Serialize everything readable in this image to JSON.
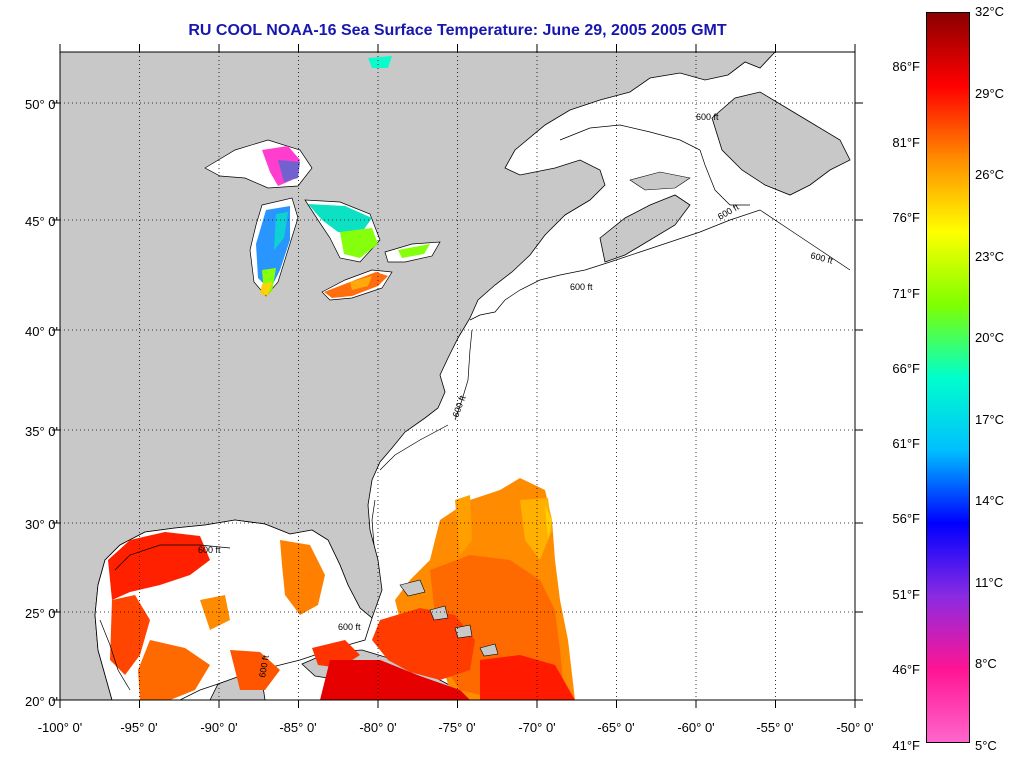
{
  "title": "RU COOL  NOAA-16  Sea Surface Temperature:  June 29, 2005 2005 GMT",
  "map": {
    "lon_range": [
      -100,
      -50
    ],
    "lat_range": [
      20,
      52.5
    ],
    "lat_ticks": [
      "20° 0'",
      "25° 0'",
      "30° 0'",
      "35° 0'",
      "40° 0'",
      "45° 0'",
      "50° 0'"
    ],
    "lon_ticks": [
      "-100° 0'",
      "-95° 0'",
      "-90° 0'",
      "-85° 0'",
      "-80° 0'",
      "-75° 0'",
      "-70° 0'",
      "-65° 0'",
      "-60° 0'",
      "-55° 0'",
      "-50° 0'"
    ],
    "grid": "dotted",
    "land_color": "#c8c8c8",
    "nodata_color": "#ffffff",
    "contour_label": "600 ft"
  },
  "colorbar": {
    "celsius_labels": [
      "32°C",
      "29°C",
      "26°C",
      "23°C",
      "20°C",
      "17°C",
      "14°C",
      "11°C",
      "8°C",
      "5°C"
    ],
    "fahrenheit_labels": [
      "86°F",
      "81°F",
      "76°F",
      "71°F",
      "66°F",
      "61°F",
      "56°F",
      "51°F",
      "46°F",
      "41°F"
    ],
    "colors_top_to_bottom": [
      "#8b0000",
      "#ff0000",
      "#ff8c00",
      "#ffff00",
      "#7fff00",
      "#00ffcc",
      "#00bfff",
      "#0000ff",
      "#8a2be2",
      "#ff1493",
      "#ff66cc"
    ]
  }
}
